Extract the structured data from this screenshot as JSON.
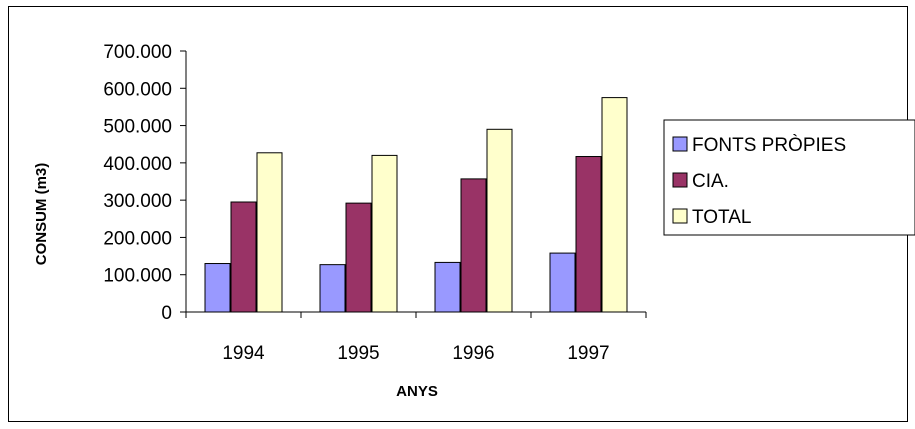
{
  "chart_data": {
    "type": "bar",
    "title": "",
    "xlabel": "ANYS",
    "ylabel": "CONSUM (m3)",
    "categories": [
      "1994",
      "1995",
      "1996",
      "1997"
    ],
    "series": [
      {
        "name": "FONTS PRÒPIES",
        "color": "#9999ff",
        "values": [
          130000,
          127000,
          133000,
          158000
        ]
      },
      {
        "name": "CIA.",
        "color": "#993366",
        "values": [
          295000,
          292000,
          357000,
          417000
        ]
      },
      {
        "name": "TOTAL",
        "color": "#ffffcc",
        "values": [
          427000,
          420000,
          490000,
          575000
        ]
      }
    ],
    "ylim": [
      0,
      700000
    ],
    "yticks": [
      0,
      100000,
      200000,
      300000,
      400000,
      500000,
      600000,
      700000
    ],
    "ytick_labels": [
      "0",
      "100.000",
      "200.000",
      "300.000",
      "400.000",
      "500.000",
      "600.000",
      "700.000"
    ],
    "grid": false,
    "legend_position": "right"
  }
}
